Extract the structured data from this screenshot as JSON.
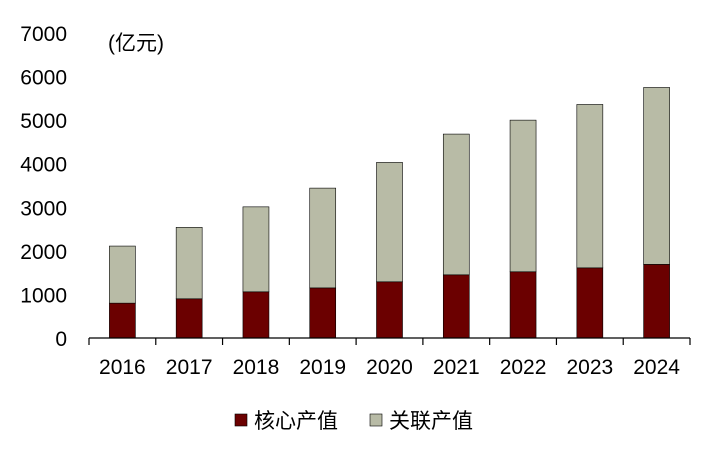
{
  "chart_data": {
    "type": "bar",
    "stacked": true,
    "unit_label": "(亿元)",
    "categories": [
      "2016",
      "2017",
      "2018",
      "2019",
      "2020",
      "2021",
      "2022",
      "2023",
      "2024"
    ],
    "series": [
      {
        "name": "核心产值",
        "color": "#6b0000",
        "values": [
          800,
          900,
          1060,
          1150,
          1290,
          1450,
          1520,
          1610,
          1690
        ]
      },
      {
        "name": "关联产值",
        "color": "#b8bba6",
        "values": [
          1310,
          1640,
          1950,
          2290,
          2740,
          3230,
          3480,
          3750,
          4060
        ]
      }
    ],
    "ylim": [
      0,
      7000
    ],
    "yticks": [
      0,
      1000,
      2000,
      3000,
      4000,
      5000,
      6000,
      7000
    ],
    "legend_position": "bottom"
  }
}
